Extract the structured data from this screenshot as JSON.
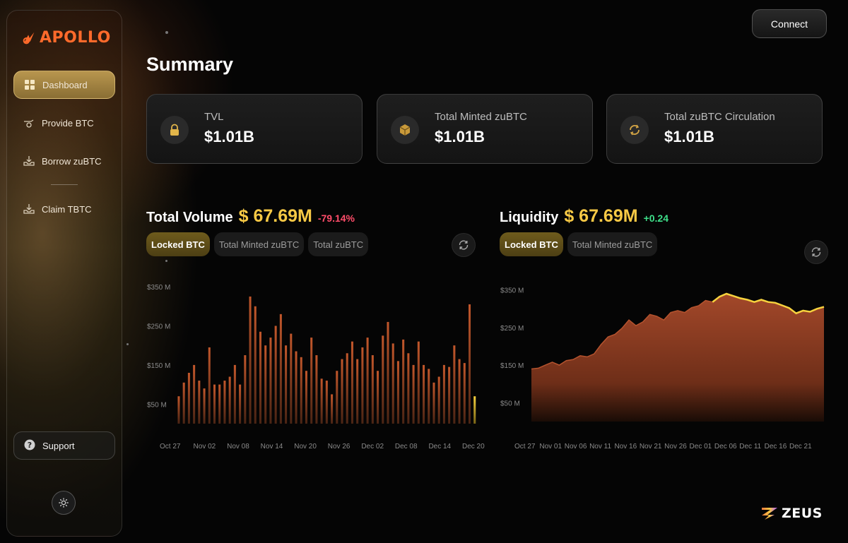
{
  "app": {
    "logo_text": "APOLLO",
    "brand_footer": "ZEUS"
  },
  "sidebar": {
    "items": [
      {
        "label": "Dashboard",
        "icon": "grid-icon",
        "active": true
      },
      {
        "label": "Provide BTC",
        "icon": "hand-coin-icon",
        "active": false
      },
      {
        "label": "Borrow zuBTC",
        "icon": "download-tray-icon",
        "active": false
      },
      {
        "label": "Claim TBTC",
        "icon": "download-tray-icon",
        "active": false
      }
    ],
    "support_label": "Support"
  },
  "header": {
    "connect_label": "Connect"
  },
  "page": {
    "title": "Summary"
  },
  "stats": [
    {
      "label": "TVL",
      "value": "$1.01B",
      "icon": "lock-icon"
    },
    {
      "label": "Total Minted zuBTC",
      "value": "$1.01B",
      "icon": "cube-icon"
    },
    {
      "label": "Total zuBTC Circulation",
      "value": "$1.01B",
      "icon": "cycle-icon"
    }
  ],
  "volume": {
    "title": "Total Volume",
    "value": "$ 67.69M",
    "delta": "-79.14%",
    "delta_color": "#ff4d6a",
    "tabs": [
      {
        "label": "Locked BTC",
        "active": true
      },
      {
        "label": "Total Minted zuBTC",
        "active": false
      },
      {
        "label": "Total zuBTC",
        "active": false
      }
    ]
  },
  "liquidity": {
    "title": "Liquidity",
    "value": "$ 67.69M",
    "delta": "+0.24",
    "delta_color": "#3ee08a",
    "tabs": [
      {
        "label": "Locked BTC",
        "active": true
      },
      {
        "label": "Total Minted zuBTC",
        "active": false
      }
    ]
  },
  "chart_data": [
    {
      "type": "bar",
      "y_ticks": [
        "$350 M",
        "$250 M",
        "$150 M",
        "$50 M"
      ],
      "y_tick_values": [
        350,
        250,
        150,
        50
      ],
      "x_ticks": [
        "Oct 27",
        "Nov 02",
        "Nov 08",
        "Nov 14",
        "Nov 20",
        "Nov 26",
        "Dec 02",
        "Dec 08",
        "Dec 14",
        "Dec 20"
      ],
      "ylim": [
        0,
        370
      ],
      "values": [
        70,
        105,
        130,
        150,
        110,
        90,
        195,
        100,
        100,
        110,
        120,
        150,
        100,
        175,
        325,
        300,
        235,
        200,
        220,
        250,
        280,
        200,
        230,
        185,
        170,
        135,
        220,
        175,
        115,
        110,
        75,
        135,
        165,
        180,
        210,
        165,
        195,
        220,
        175,
        135,
        225,
        260,
        205,
        160,
        215,
        180,
        150,
        210,
        150,
        140,
        105,
        120,
        150,
        145,
        200,
        165,
        155,
        305,
        70
      ],
      "highlight_last": true
    },
    {
      "type": "area",
      "y_ticks": [
        "$350 M",
        "$250 M",
        "$150 M",
        "$50 M"
      ],
      "y_tick_values": [
        350,
        250,
        150,
        50
      ],
      "x_ticks": [
        "Oct 27",
        "Nov 01",
        "Nov 06",
        "Nov 11",
        "Nov 16",
        "Nov 21",
        "Nov 26",
        "Dec 01",
        "Dec 06",
        "Dec 11",
        "Dec 16",
        "Dec 21"
      ],
      "ylim": [
        0,
        370
      ],
      "values": [
        140,
        142,
        150,
        158,
        150,
        162,
        165,
        175,
        172,
        180,
        205,
        225,
        232,
        248,
        270,
        255,
        265,
        285,
        280,
        270,
        290,
        295,
        290,
        303,
        308,
        322,
        318,
        332,
        340,
        334,
        328,
        324,
        318,
        324,
        318,
        316,
        309,
        302,
        288,
        295,
        292,
        300,
        305
      ]
    }
  ]
}
